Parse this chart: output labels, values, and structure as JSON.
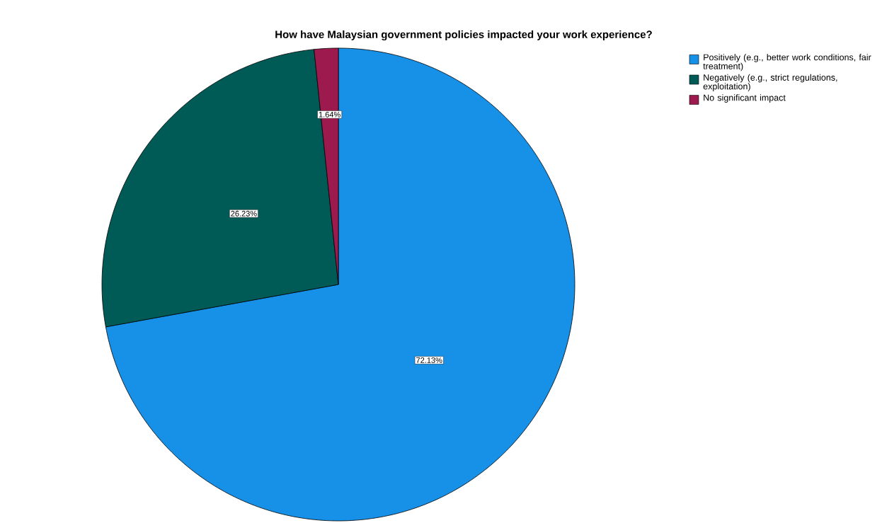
{
  "chart_data": {
    "type": "pie",
    "title": "How have Malaysian government policies impacted your work experience?",
    "categories": [
      "Positively (e.g., better work conditions, fair treatment)",
      "Negatively (e.g., strict regulations, exploitation)",
      "No significant impact"
    ],
    "values": [
      72.13,
      26.23,
      1.64
    ],
    "colors": [
      "#1790e8",
      "#005a56",
      "#9c1a4e"
    ],
    "value_labels": [
      "72.13%",
      "26.23%",
      "1.64%"
    ],
    "legend": "top right"
  }
}
